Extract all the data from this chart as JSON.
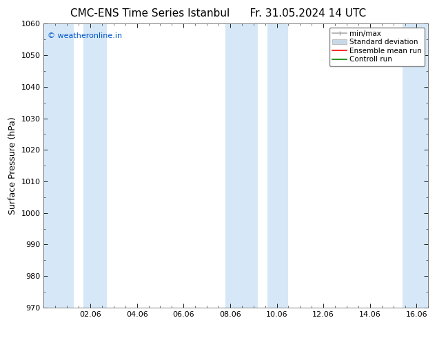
{
  "title_left": "CMC-ENS Time Series Istanbul",
  "title_right": "Fr. 31.05.2024 14 UTC",
  "ylabel": "Surface Pressure (hPa)",
  "ylim": [
    970,
    1060
  ],
  "yticks": [
    970,
    980,
    990,
    1000,
    1010,
    1020,
    1030,
    1040,
    1050,
    1060
  ],
  "xlim": [
    0.0,
    16.5
  ],
  "xtick_positions": [
    2,
    4,
    6,
    8,
    10,
    12,
    14,
    16
  ],
  "xtick_labels": [
    "02.06",
    "04.06",
    "06.06",
    "08.06",
    "10.06",
    "12.06",
    "14.06",
    "16.06"
  ],
  "watermark": "© weatheronline.in",
  "watermark_color": "#0055cc",
  "bg_color": "#ffffff",
  "plot_bg_color": "#ffffff",
  "shaded_bands": [
    {
      "xmin": 0.0,
      "xmax": 1.3
    },
    {
      "xmin": 1.7,
      "xmax": 2.7
    },
    {
      "xmin": 7.8,
      "xmax": 9.2
    },
    {
      "xmin": 9.6,
      "xmax": 10.5
    },
    {
      "xmin": 15.4,
      "xmax": 16.5
    }
  ],
  "shaded_color": "#d6e8f7",
  "legend_entries": [
    {
      "label": "min/max",
      "color": "#aaaaaa",
      "lw": 1.2,
      "style": "minmax"
    },
    {
      "label": "Standard deviation",
      "color": "#c8d8e8",
      "lw": 8,
      "style": "band"
    },
    {
      "label": "Ensemble mean run",
      "color": "#ff0000",
      "lw": 1.2,
      "style": "line"
    },
    {
      "label": "Controll run",
      "color": "#008000",
      "lw": 1.2,
      "style": "line"
    }
  ],
  "title_fontsize": 11,
  "tick_fontsize": 8,
  "ylabel_fontsize": 9,
  "watermark_fontsize": 8,
  "legend_fontsize": 7.5
}
